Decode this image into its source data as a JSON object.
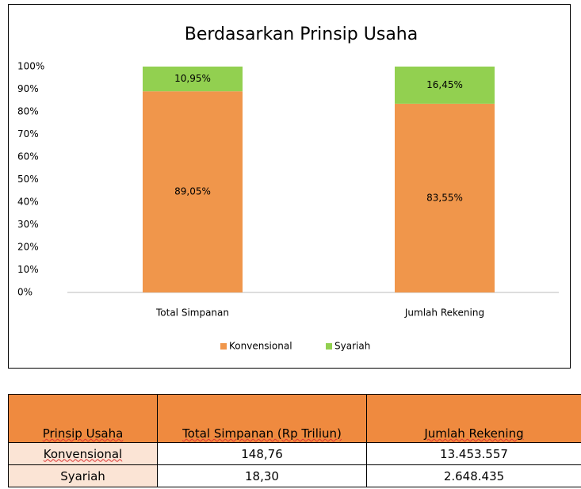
{
  "chart_data": {
    "type": "stacked_bar",
    "title": "Berdasarkan Prinsip Usaha",
    "categories": [
      "Total Simpanan",
      "Jumlah Rekening"
    ],
    "series": [
      {
        "name": "Konvensional",
        "color": "#f0964b",
        "values": [
          89.05,
          83.55
        ],
        "value_labels": [
          "89,05%",
          "83,55%"
        ]
      },
      {
        "name": "Syariah",
        "color": "#92d050",
        "values": [
          10.95,
          16.45
        ],
        "value_labels": [
          "10,95%",
          "16,45%"
        ]
      }
    ],
    "ylim": [
      0,
      100
    ],
    "yticks": [
      {
        "value": 0,
        "label": "0%"
      },
      {
        "value": 10,
        "label": "10%"
      },
      {
        "value": 20,
        "label": "20%"
      },
      {
        "value": 30,
        "label": "30%"
      },
      {
        "value": 40,
        "label": "40%"
      },
      {
        "value": 50,
        "label": "50%"
      },
      {
        "value": 60,
        "label": "60%"
      },
      {
        "value": 70,
        "label": "70%"
      },
      {
        "value": 80,
        "label": "80%"
      },
      {
        "value": 90,
        "label": "90%"
      },
      {
        "value": 100,
        "label": "100%"
      }
    ],
    "grid": false,
    "legend": "bottom"
  },
  "table": {
    "header": [
      "Prinsip Usaha",
      "Total Simpanan (Rp Triliun)",
      "Jumlah Rekening"
    ],
    "rows": [
      [
        "Konvensional",
        "148,76",
        "13.453.557"
      ],
      [
        "Syariah",
        "18,30",
        "2.648.435"
      ]
    ]
  }
}
